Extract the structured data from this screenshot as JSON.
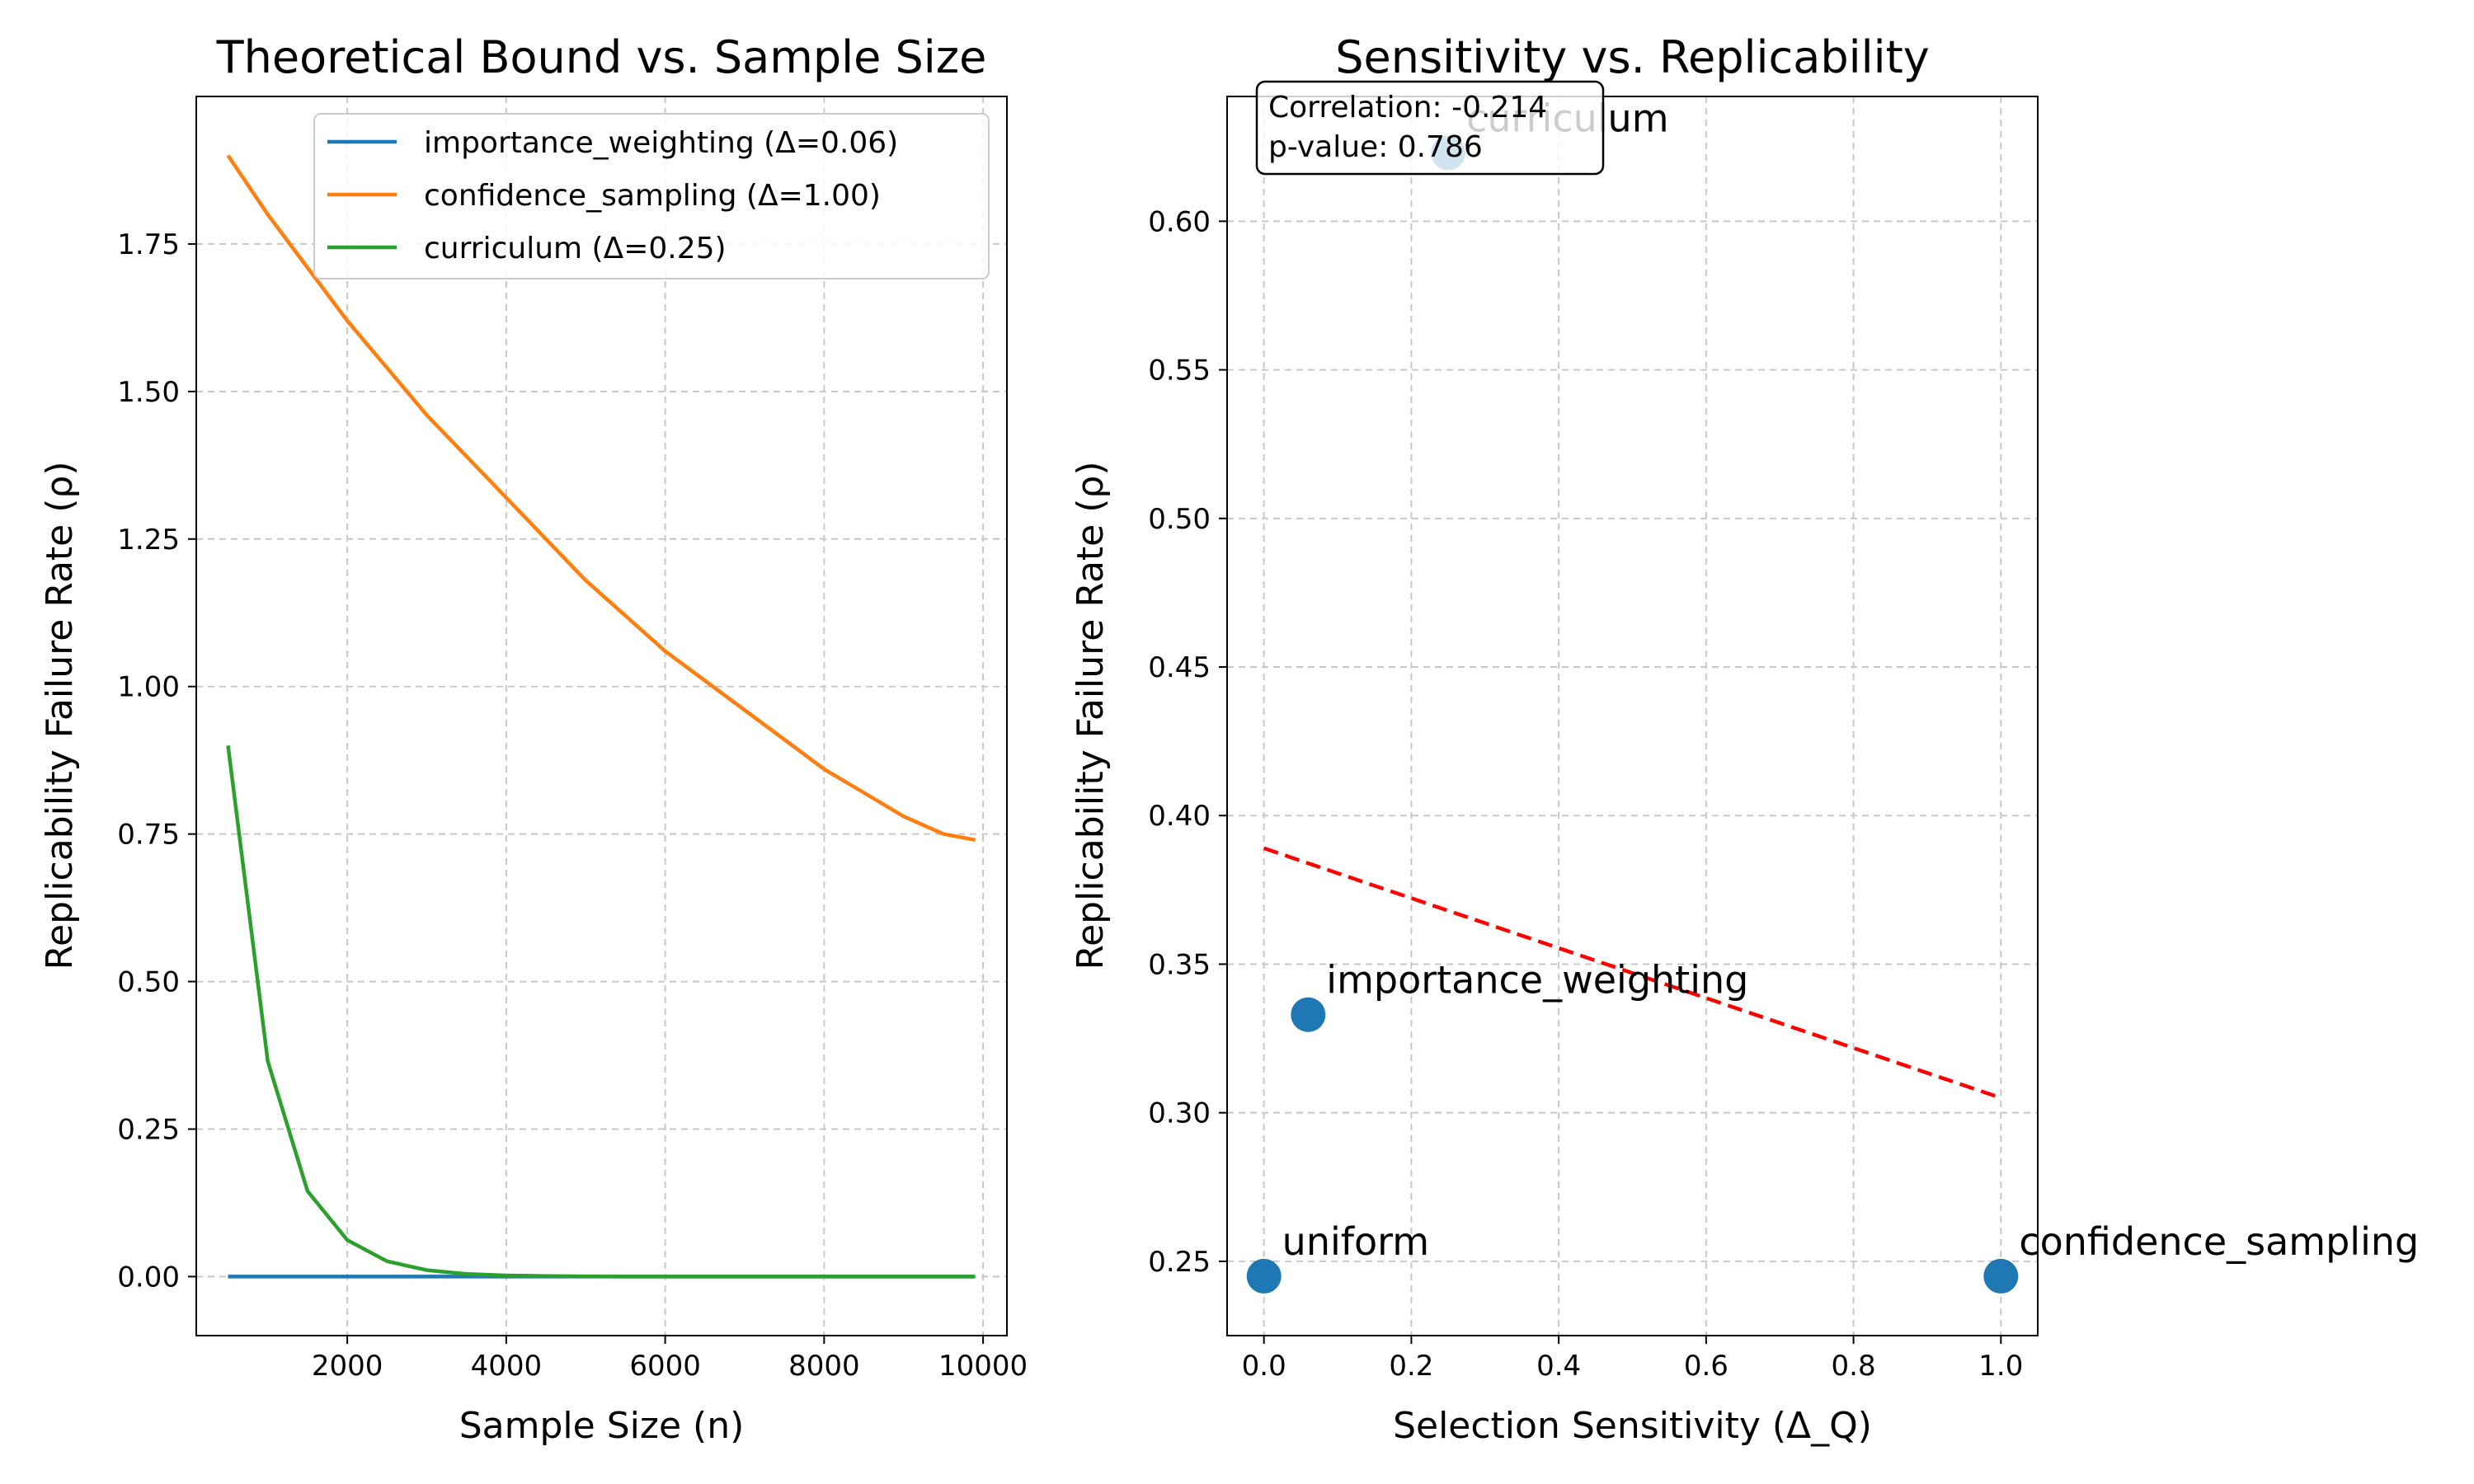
{
  "chart_data": [
    {
      "type": "line",
      "title": "Theoretical Bound vs. Sample Size",
      "xlabel": "Sample Size (n)",
      "ylabel": "Replicability Failure Rate (ρ)",
      "xlim": [
        100,
        10300
      ],
      "ylim": [
        -0.1,
        2.0
      ],
      "xticks": [
        2000,
        4000,
        6000,
        8000,
        10000
      ],
      "yticks": [
        0.0,
        0.25,
        0.5,
        0.75,
        1.0,
        1.25,
        1.5,
        1.75
      ],
      "xtick_labels": [
        "2000",
        "4000",
        "6000",
        "8000",
        "10000"
      ],
      "ytick_labels": [
        "0.00",
        "0.25",
        "0.50",
        "0.75",
        "1.00",
        "1.25",
        "1.50",
        "1.75"
      ],
      "grid": true,
      "legend_position": "upper-right",
      "x": [
        500,
        1000,
        1500,
        2000,
        2500,
        3000,
        3500,
        4000,
        4500,
        5000,
        5500,
        6000,
        6500,
        7000,
        7500,
        8000,
        8500,
        9000,
        9500,
        9900
      ],
      "series": [
        {
          "name": "importance_weighting (Δ=0.06)",
          "color": "#1f77b4",
          "values": [
            0,
            0,
            0,
            0,
            0,
            0,
            0,
            0,
            0,
            0,
            0,
            0,
            0,
            0,
            0,
            0,
            0,
            0,
            0,
            0
          ]
        },
        {
          "name": "confidence_sampling (Δ=1.00)",
          "color": "#ff7f0e",
          "values": [
            1.9,
            1.8,
            1.71,
            1.62,
            1.54,
            1.46,
            1.39,
            1.32,
            1.25,
            1.18,
            1.12,
            1.06,
            1.01,
            0.96,
            0.91,
            0.86,
            0.82,
            0.78,
            0.75,
            0.74
          ]
        },
        {
          "name": "curriculum (Δ=0.25)",
          "color": "#2ca02c",
          "values": [
            0.9,
            0.365,
            0.145,
            0.062,
            0.026,
            0.011,
            0.0045,
            0.002,
            0.001,
            0.0004,
            0,
            0,
            0,
            0,
            0,
            0,
            0,
            0,
            0,
            0
          ]
        }
      ]
    },
    {
      "type": "scatter",
      "title": "Sensitivity vs. Replicability",
      "xlabel": "Selection Sensitivity (Δ_Q)",
      "ylabel": "Replicability Failure Rate (ρ)",
      "xlim": [
        -0.05,
        1.05
      ],
      "ylim": [
        0.225,
        0.642
      ],
      "xticks": [
        0.0,
        0.2,
        0.4,
        0.6,
        0.8,
        1.0
      ],
      "yticks": [
        0.25,
        0.3,
        0.35,
        0.4,
        0.45,
        0.5,
        0.55,
        0.6
      ],
      "xtick_labels": [
        "0.0",
        "0.2",
        "0.4",
        "0.6",
        "0.8",
        "1.0"
      ],
      "ytick_labels": [
        "0.25",
        "0.30",
        "0.35",
        "0.40",
        "0.45",
        "0.50",
        "0.55",
        "0.60"
      ],
      "grid": true,
      "point_color": "#1f77b4",
      "points": [
        {
          "label": "uniform",
          "x": 0.0,
          "y": 0.245
        },
        {
          "label": "importance_weighting",
          "x": 0.06,
          "y": 0.333
        },
        {
          "label": "curriculum",
          "x": 0.25,
          "y": 0.623
        },
        {
          "label": "confidence_sampling",
          "x": 1.0,
          "y": 0.245
        }
      ],
      "trend_line": {
        "color": "#ff0000",
        "x": [
          0.0,
          1.0
        ],
        "y": [
          0.389,
          0.305
        ]
      },
      "stats_box": {
        "correlation": "Correlation: -0.214",
        "p_value": "p-value: 0.786"
      }
    }
  ]
}
